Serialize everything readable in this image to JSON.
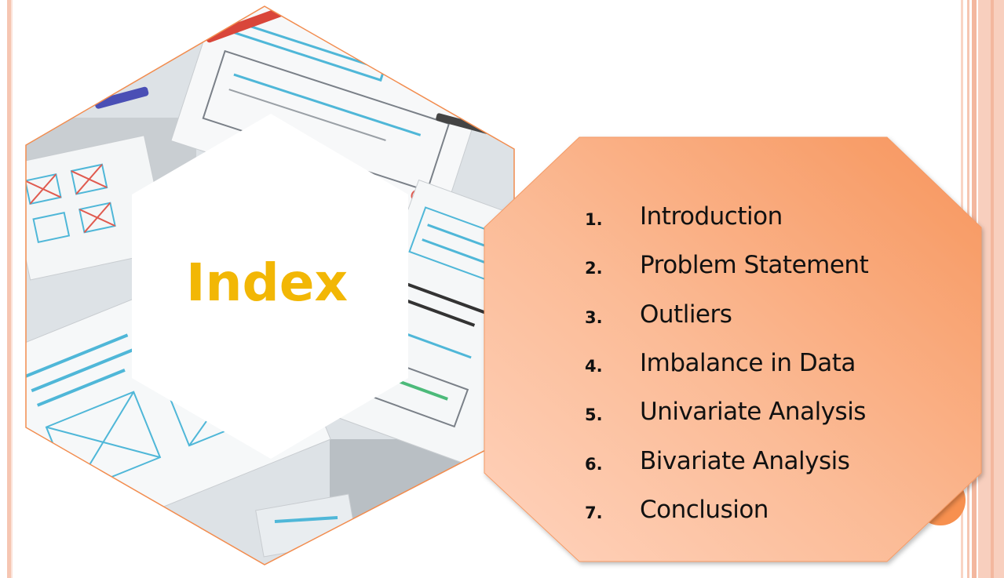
{
  "title": "Index",
  "toc": [
    {
      "number": "1.",
      "label": "Introduction"
    },
    {
      "number": "2.",
      "label": "Problem Statement"
    },
    {
      "number": "3.",
      "label": "Outliers"
    },
    {
      "number": "4.",
      "label": "Imbalance in Data"
    },
    {
      "number": "5.",
      "label": "Univariate Analysis"
    },
    {
      "number": "6.",
      "label": "Bivariate Analysis"
    },
    {
      "number": "7.",
      "label": "Conclusion"
    }
  ],
  "colors": {
    "title": "#f2b705",
    "octagon_light": "#ffd3bd",
    "octagon_dark": "#f7955c",
    "hex_border": "#f28c4e",
    "stripes": "#f6c6b2"
  },
  "image": "wireframe-sketches-photo"
}
